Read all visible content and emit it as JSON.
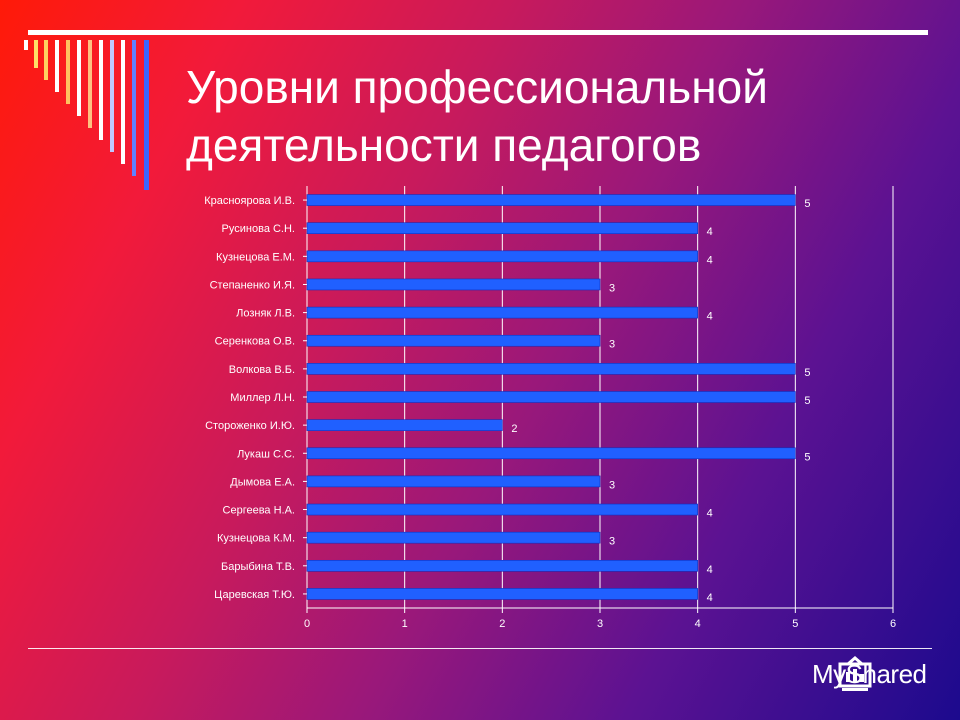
{
  "slide": {
    "title_line1": "Уровни профессиональной",
    "title_line2": "деятельности педагогов",
    "watermark": "MyShared"
  },
  "colors": {
    "bar": "#2060ff",
    "bar_border": "#1030c0",
    "grid": "#ffffff",
    "text": "#ffffff"
  },
  "chart_data": {
    "type": "bar",
    "orientation": "horizontal",
    "title": "",
    "xlabel": "",
    "ylabel": "",
    "categories": [
      "Красноярова И.В.",
      "Русинова С.Н.",
      "Кузнецова Е.М.",
      "Степаненко И.Я.",
      "Лозняк Л.В.",
      "Серенкова О.В.",
      "Волкова В.Б.",
      "Миллер Л.Н.",
      "Стороженко И.Ю.",
      "Лукаш С.С.",
      "Дымова Е.А.",
      "Сергеева Н.А.",
      "Кузнецова К.М.",
      "Барыбина Т.В.",
      "Царевская Т.Ю."
    ],
    "values": [
      5,
      4,
      4,
      3,
      4,
      3,
      5,
      5,
      2,
      5,
      3,
      4,
      3,
      4,
      4
    ],
    "xlim": [
      0,
      6
    ],
    "xticks": [
      "0",
      "1",
      "2",
      "3",
      "4",
      "5",
      "6"
    ],
    "grid": true,
    "data_labels": true
  }
}
